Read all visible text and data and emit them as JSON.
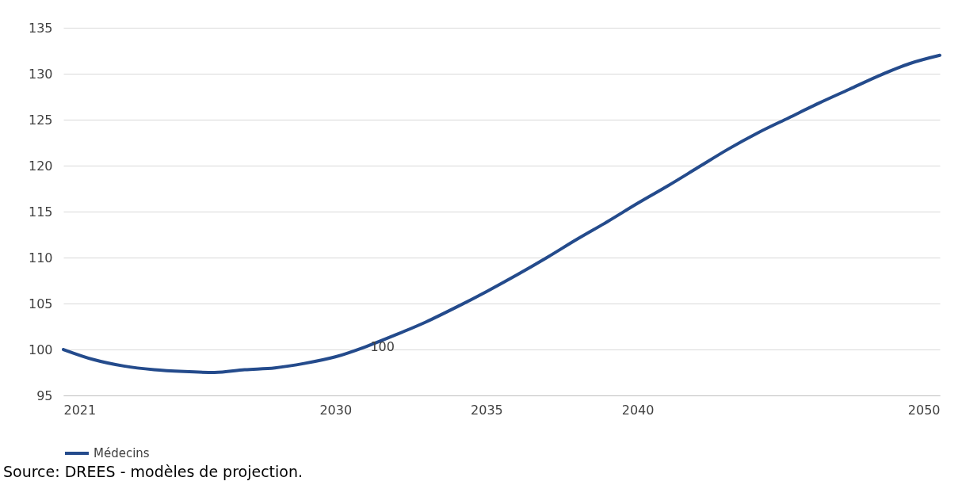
{
  "chart_data": {
    "type": "line",
    "x": [
      2021,
      2022,
      2023,
      2024,
      2025,
      2026,
      2027,
      2028,
      2029,
      2030,
      2031,
      2032,
      2033,
      2034,
      2035,
      2036,
      2037,
      2038,
      2039,
      2040,
      2041,
      2042,
      2043,
      2044,
      2045,
      2046,
      2047,
      2048,
      2049,
      2050
    ],
    "series": [
      {
        "name": "Médecins",
        "color": "#244b8c",
        "values": [
          100,
          98.9,
          98.2,
          97.8,
          97.6,
          97.5,
          97.8,
          98.0,
          98.5,
          99.2,
          100.3,
          101.6,
          103.0,
          104.6,
          106.3,
          108.1,
          110.0,
          112.0,
          113.9,
          115.9,
          117.8,
          119.8,
          121.8,
          123.6,
          125.2,
          126.8,
          128.3,
          129.8,
          131.1,
          132.0
        ]
      }
    ],
    "xlim": [
      2021,
      2050
    ],
    "xticks": [
      2021,
      2030,
      2035,
      2040,
      2050
    ],
    "ylim": [
      95,
      135
    ],
    "yticks": [
      95,
      100,
      105,
      110,
      115,
      120,
      125,
      130,
      135
    ],
    "grid": "y",
    "legend": "bottom",
    "marker": "none",
    "line_style": "solid",
    "annotations": [
      {
        "text": "100",
        "x": 2031,
        "y": 100.3
      },
      "Source: DREES - modèles de projection."
    ]
  }
}
